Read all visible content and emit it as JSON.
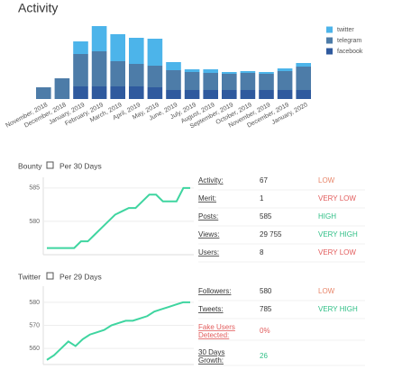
{
  "chart_data": [
    {
      "type": "stacked-bar",
      "title": "Activity",
      "categories": [
        "November, 2018",
        "December, 2018",
        "January, 2019",
        "February, 2019",
        "March, 2019",
        "April, 2019",
        "May, 2019",
        "June, 2019",
        "July, 2019",
        "August, 2019",
        "September, 2019",
        "October, 2019",
        "November, 2019",
        "December, 2019",
        "January, 2020"
      ],
      "series": [
        {
          "name": "facebook",
          "color": "#2f5a9e",
          "values": [
            0,
            0,
            14,
            14,
            14,
            14,
            13,
            10,
            10,
            10,
            10,
            10,
            10,
            10,
            10
          ]
        },
        {
          "name": "telegram",
          "color": "#4d7ca8",
          "values": [
            13,
            23,
            36,
            39,
            28,
            25,
            24,
            22,
            20,
            19,
            18,
            19,
            18,
            21,
            26
          ]
        },
        {
          "name": "twitter",
          "color": "#4cb4ea",
          "values": [
            0,
            0,
            14,
            28,
            30,
            29,
            30,
            9,
            3,
            4,
            2,
            2,
            2,
            3,
            4
          ]
        }
      ],
      "legend": "top-right"
    },
    {
      "type": "line",
      "title": "Bounty",
      "subtitle": "Per 30 Days",
      "color": "#3fd5a0",
      "values": [
        576,
        576,
        576,
        576,
        576,
        577,
        577,
        578,
        579,
        580,
        581,
        581.5,
        582,
        582,
        583,
        584,
        584,
        583,
        583,
        583,
        585,
        585
      ],
      "ylim": [
        575,
        586.6
      ],
      "yticks": [
        580,
        585
      ],
      "grid": true
    },
    {
      "type": "line",
      "title": "Twitter",
      "subtitle": "Per 29 Days",
      "color": "#3fd5a0",
      "values": [
        555,
        557,
        560,
        563,
        561,
        564,
        566,
        567,
        568,
        570,
        571,
        572,
        572,
        573,
        574,
        576,
        577,
        578,
        579,
        580,
        580
      ],
      "ylim": [
        553,
        587
      ],
      "yticks": [
        560,
        570,
        580
      ],
      "grid": true
    }
  ],
  "bounty_stats": [
    {
      "label": "Activity:",
      "value": "67",
      "rating": "LOW",
      "color": "#e8866a"
    },
    {
      "label": "Merit:",
      "value": "1",
      "rating": "VERY LOW",
      "color": "#e25c5c"
    },
    {
      "label": "Posts:",
      "value": "585",
      "rating": "HIGH",
      "color": "#2fbf86"
    },
    {
      "label": "Views:",
      "value": "29 755",
      "rating": "VERY HIGH",
      "color": "#2fbf86"
    },
    {
      "label": "Users:",
      "value": "8",
      "rating": "VERY LOW",
      "color": "#e25c5c"
    }
  ],
  "twitter_stats": [
    {
      "label": "Followers:",
      "value": "580",
      "rating": "LOW",
      "color": "#e8866a"
    },
    {
      "label": "Tweets:",
      "value": "785",
      "rating": "VERY HIGH",
      "color": "#2fbf86"
    },
    {
      "label": "Fake Users Detected:",
      "value": "0%",
      "color": "#e25c5c"
    },
    {
      "label": "30 Days Growth:",
      "value": "26",
      "color": "#2fbf86"
    }
  ]
}
